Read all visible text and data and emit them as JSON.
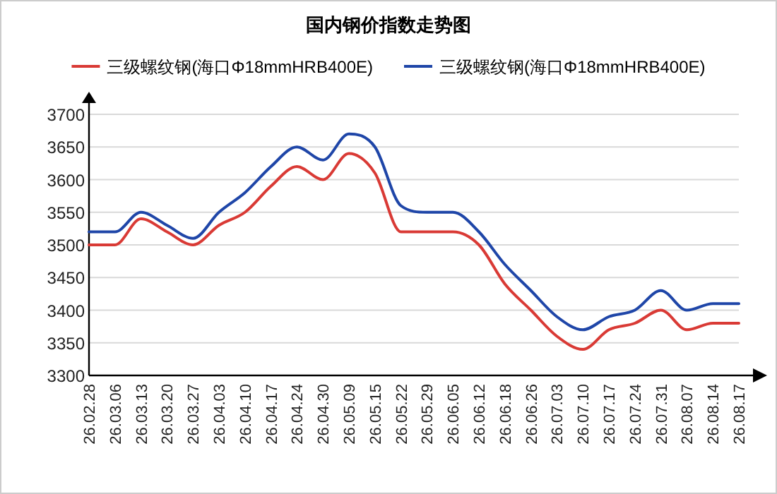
{
  "chart_data": {
    "type": "line",
    "title": "国内钢价指数走势图",
    "categories": [
      "26.02.28",
      "26.03.06",
      "26.03.13",
      "26.03.20",
      "26.03.27",
      "26.04.03",
      "26.04.10",
      "26.04.17",
      "26.04.24",
      "26.04.30",
      "26.05.09",
      "26.05.15",
      "26.05.22",
      "26.05.29",
      "26.06.05",
      "26.06.12",
      "26.06.18",
      "26.06.26",
      "26.07.03",
      "26.07.10",
      "26.07.17",
      "26.07.24",
      "26.07.31",
      "26.08.07",
      "26.08.14",
      "26.08.17"
    ],
    "series": [
      {
        "name": "三级螺纹钢(海口Φ18mmHRB400E)",
        "color": "#d93a35",
        "values": [
          3500,
          3500,
          3540,
          3520,
          3500,
          3530,
          3550,
          3590,
          3620,
          3600,
          3640,
          3610,
          3520,
          3520,
          3520,
          3500,
          3440,
          3400,
          3360,
          3340,
          3370,
          3380,
          3400,
          3370,
          3380,
          3380
        ]
      },
      {
        "name": "三级螺纹钢(海口Φ18mmHRB400E)",
        "color": "#1f46a8",
        "values": [
          3520,
          3520,
          3550,
          3530,
          3510,
          3550,
          3580,
          3620,
          3650,
          3630,
          3670,
          3650,
          3560,
          3550,
          3550,
          3520,
          3470,
          3430,
          3390,
          3370,
          3390,
          3400,
          3430,
          3400,
          3410,
          3410
        ]
      }
    ],
    "ylim": [
      3300,
      3700
    ],
    "yticks": [
      3300,
      3350,
      3400,
      3450,
      3500,
      3550,
      3600,
      3650,
      3700
    ],
    "grid": "y",
    "legend": "top",
    "marker": "none",
    "line_style": "solid"
  }
}
